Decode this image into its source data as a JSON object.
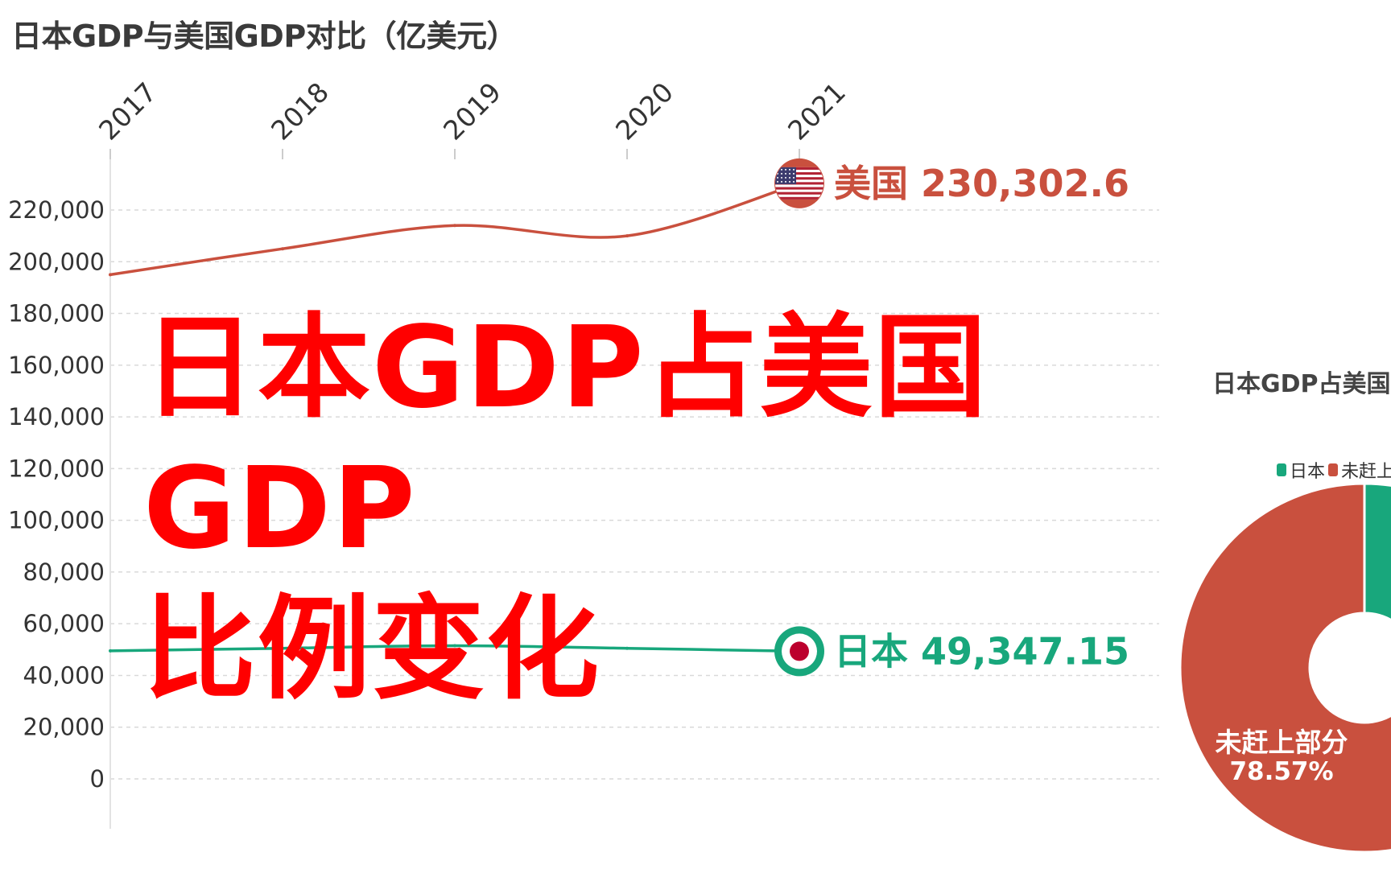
{
  "title": "日本GDP与美国GDP对比（亿美元）",
  "overlay": {
    "line1": "日本GDP占美国GDP",
    "line2": "比例变化"
  },
  "colors": {
    "us": "#c9503e",
    "japan": "#18a77c",
    "overlay": "#ff0000"
  },
  "chart_data": {
    "type": "line",
    "title": "日本GDP与美国GDP对比（亿美元）",
    "x": [
      "2017",
      "2018",
      "2019",
      "2020",
      "2021"
    ],
    "ylim": [
      0,
      230000
    ],
    "yticks": [
      0,
      20000,
      40000,
      60000,
      80000,
      100000,
      120000,
      140000,
      160000,
      180000,
      200000,
      220000
    ],
    "ytick_labels": [
      "0",
      "20,000",
      "40,000",
      "60,000",
      "80,000",
      "100,000",
      "120,000",
      "140,000",
      "160,000",
      "180,000",
      "200,000",
      "220,000"
    ],
    "grid": true,
    "series": [
      {
        "name": "美国",
        "values": [
          195000,
          205000,
          214000,
          210000,
          230302.6
        ],
        "end_label": "230,302.6",
        "icon": "us-flag-icon"
      },
      {
        "name": "日本",
        "values": [
          49500,
          50500,
          51500,
          50500,
          49347.15
        ],
        "end_label": "49,347.15",
        "icon": "japan-flag-icon"
      }
    ]
  },
  "pie": {
    "title": "日本GDP占美国",
    "legend": [
      {
        "label": "日本"
      },
      {
        "label": "未赶上"
      }
    ],
    "slices": [
      {
        "name": "日本",
        "percent": 21.43
      },
      {
        "name": "未赶上部分",
        "percent": 78.57
      }
    ],
    "label_name": "未赶上部分",
    "label_pct": "78.57%"
  }
}
